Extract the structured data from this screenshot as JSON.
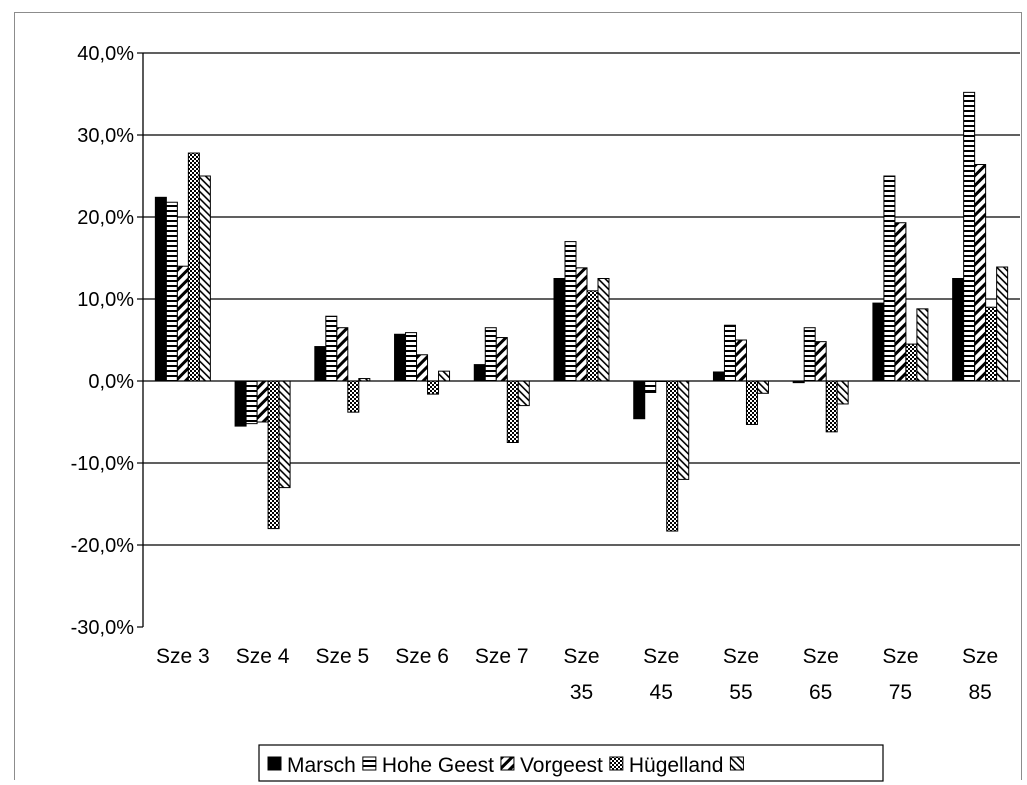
{
  "chart_data": {
    "type": "bar",
    "title": "",
    "xlabel": "",
    "ylabel": "",
    "ylim": [
      -30,
      40
    ],
    "yticks": [
      -30,
      -20,
      -10,
      0,
      10,
      20,
      30,
      40
    ],
    "ytick_labels": [
      "-30,0%",
      "-20,0%",
      "-10,0%",
      "0,0%",
      "10,0%",
      "20,0%",
      "30,0%",
      "40,0%"
    ],
    "grid": "horizontal",
    "legend_position": "bottom",
    "categories": [
      [
        "Sze 3"
      ],
      [
        "Sze 4"
      ],
      [
        "Sze 5"
      ],
      [
        "Sze 6"
      ],
      [
        "Sze 7"
      ],
      [
        "Sze",
        "35"
      ],
      [
        "Sze",
        "45"
      ],
      [
        "Sze",
        "55"
      ],
      [
        "Sze",
        "65"
      ],
      [
        "Sze",
        "75"
      ],
      [
        "Sze",
        "85"
      ]
    ],
    "series": [
      {
        "name": "Marsch",
        "pattern": "solid",
        "color": "#000000",
        "values": [
          22.4,
          -5.5,
          4.2,
          5.7,
          2.0,
          12.5,
          -4.6,
          1.1,
          -0.2,
          9.5,
          12.5
        ]
      },
      {
        "name": "Hohe Geest",
        "pattern": "hlines",
        "color": "#000000",
        "values": [
          21.8,
          -5.2,
          7.9,
          5.9,
          6.5,
          17.0,
          -1.4,
          6.8,
          6.5,
          25.0,
          35.2
        ]
      },
      {
        "name": "Vorgeest",
        "pattern": "diag-thick",
        "color": "#000000",
        "values": [
          14.0,
          -5.0,
          6.5,
          3.2,
          5.3,
          13.8,
          0.0,
          5.0,
          4.8,
          19.3,
          26.4
        ]
      },
      {
        "name": "Hügelland",
        "pattern": "dots",
        "color": "#000000",
        "values": [
          27.8,
          -18.0,
          -3.8,
          -1.6,
          -7.5,
          11.0,
          -18.3,
          -5.3,
          -6.2,
          4.5,
          9.0
        ]
      },
      {
        "name": "",
        "pattern": "diag-thin",
        "color": "#000000",
        "values": [
          25.0,
          -13.0,
          0.3,
          1.2,
          -3.0,
          12.5,
          -12.0,
          -1.5,
          -2.8,
          8.8,
          13.9
        ]
      }
    ]
  }
}
